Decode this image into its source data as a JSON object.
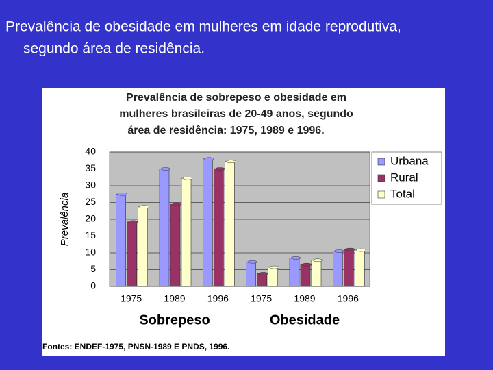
{
  "slide": {
    "title": [
      "Prevalência de obesidade em mulheres em idade reprodutiva,",
      "segundo área de residência."
    ],
    "source": "Fontes: ENDEF-1975, PNSN-1989 E PNDS, 1996."
  },
  "chart_data": {
    "type": "bar",
    "title": [
      "Prevalência de sobrepeso e obesidade em",
      "mulheres brasileiras de 20-49 anos, segundo",
      "área de residência: 1975, 1989 e 1996."
    ],
    "y_label": "Prevalência",
    "categories": [
      "1975",
      "1989",
      "1996",
      "1975",
      "1989",
      "1996"
    ],
    "groups": [
      "Sobrepeso",
      "Obesidade"
    ],
    "series": [
      {
        "name": "Urbana",
        "color": "#9999ff",
        "values": [
          27.5,
          35,
          38,
          7.3,
          8.5,
          10.5
        ]
      },
      {
        "name": "Rural",
        "color": "#993366",
        "values": [
          19.2,
          24.5,
          35,
          3.8,
          6.5,
          11
        ]
      },
      {
        "name": "Total",
        "color": "#ffffcc",
        "values": [
          23.7,
          32.2,
          37.2,
          5.7,
          7.8,
          10.8
        ]
      }
    ],
    "ylim": [
      0,
      40
    ],
    "yticks": [
      0,
      5,
      10,
      15,
      20,
      25,
      30,
      35,
      40
    ],
    "grid": true,
    "legend": "right"
  }
}
